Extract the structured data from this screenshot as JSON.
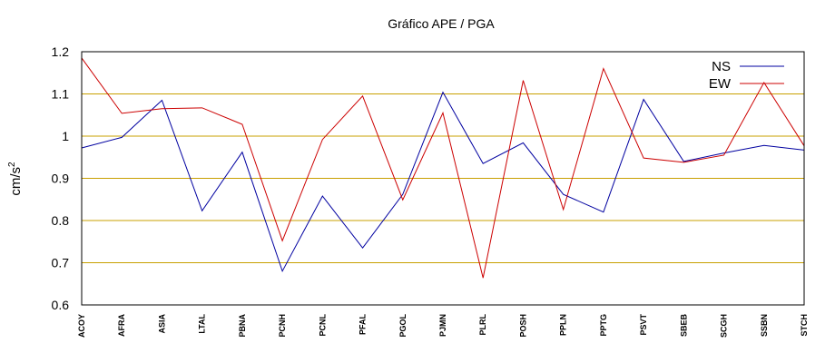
{
  "chart_data": {
    "type": "line",
    "title": "Gráfico  APE / PGA",
    "xlabel": "",
    "ylabel": "cm/s",
    "ylabel_sup": "2",
    "ylim": [
      0.6,
      1.2
    ],
    "yticks": [
      "0.6",
      "0.7",
      "0.8",
      "0.9",
      "1",
      "1.1",
      "1.2"
    ],
    "grid": "horizontal",
    "legend_position": "top-right",
    "categories": [
      "ACOY",
      "AFRA",
      "ASIA",
      "LTAL",
      "PBNA",
      "PCNH",
      "PCNL",
      "PFAL",
      "PGOL",
      "PJMN",
      "PLRL",
      "POSH",
      "PPLN",
      "PPTG",
      "PSVT",
      "SBEB",
      "SCGH",
      "SSBN",
      "STCH"
    ],
    "series": [
      {
        "name": "NS",
        "color": "#0000a0",
        "values": [
          0.972,
          0.997,
          1.085,
          0.823,
          0.962,
          0.68,
          0.858,
          0.735,
          0.862,
          1.104,
          0.935,
          0.984,
          0.862,
          0.82,
          1.087,
          0.94,
          0.96,
          0.978,
          0.967
        ]
      },
      {
        "name": "EW",
        "color": "#cc0000",
        "values": [
          1.185,
          1.054,
          1.065,
          1.067,
          1.028,
          0.752,
          0.992,
          1.095,
          0.849,
          1.055,
          0.664,
          1.132,
          0.826,
          1.16,
          0.948,
          0.938,
          0.955,
          1.127,
          0.977
        ]
      }
    ],
    "colors": {
      "grid": "#c8a000",
      "frame": "#000000"
    }
  }
}
